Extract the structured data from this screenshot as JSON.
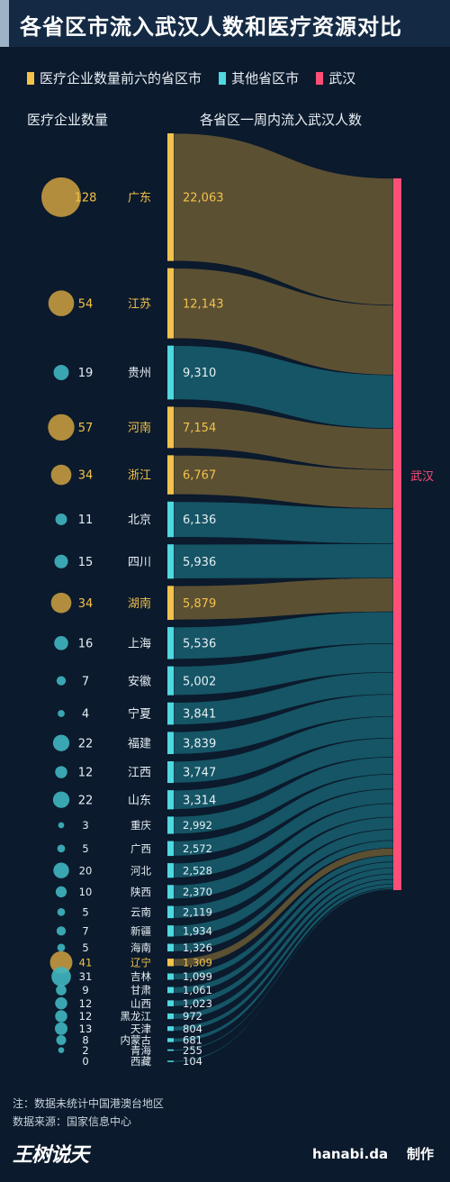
{
  "title": "各省区市流入武汉人数和医疗资源对比",
  "legend": [
    {
      "label": "医疗企业数量前六的省区市",
      "color": "#f2c24a"
    },
    {
      "label": "其他省区市",
      "color": "#4fd8e0"
    },
    {
      "label": "武汉",
      "color": "#ff4f78"
    }
  ],
  "left_header": "医疗企业数量",
  "right_header": "各省区一周内流入武汉人数",
  "target_label": "武汉",
  "footnote": "注：数据未统计中国港澳台地区",
  "source": "数据来源：国家信息中心",
  "brand_left": "王树说天",
  "brand_right": "hanabi.da",
  "brand_right_suffix": "制作",
  "chart_data": {
    "type": "sankey",
    "target": "武汉",
    "categories": [
      "广东",
      "江苏",
      "贵州",
      "河南",
      "浙江",
      "北京",
      "四川",
      "湖南",
      "上海",
      "安徽",
      "宁夏",
      "福建",
      "江西",
      "山东",
      "重庆",
      "广西",
      "河北",
      "陕西",
      "云南",
      "新疆",
      "海南",
      "辽宁",
      "吉林",
      "甘肃",
      "山西",
      "黑龙江",
      "天津",
      "内蒙古",
      "青海",
      "西藏"
    ],
    "flow_to_wuhan": [
      22063,
      12143,
      9310,
      7154,
      6767,
      6136,
      5936,
      5879,
      5536,
      5002,
      3841,
      3839,
      3747,
      3314,
      2992,
      2572,
      2528,
      2370,
      2119,
      1934,
      1326,
      1309,
      1099,
      1061,
      1023,
      972,
      804,
      681,
      255,
      104
    ],
    "flow_labels": [
      "22,063",
      "12,143",
      "9,310",
      "7,154",
      "6,767",
      "6,136",
      "5,936",
      "5,879",
      "5,536",
      "5,002",
      "3,841",
      "3,839",
      "3,747",
      "3,314",
      "2,992",
      "2,572",
      "2,528",
      "2,370",
      "2,119",
      "1,934",
      "1,326",
      "1,309",
      "1,099",
      "1,061",
      "1,023",
      "972",
      "804",
      "681",
      "255",
      "104"
    ],
    "medical_enterprises": [
      128,
      54,
      19,
      57,
      34,
      11,
      15,
      34,
      16,
      7,
      4,
      22,
      12,
      22,
      3,
      5,
      20,
      10,
      5,
      7,
      5,
      41,
      31,
      9,
      12,
      12,
      13,
      8,
      2,
      0
    ],
    "top6": [
      "广东",
      "江苏",
      "河南",
      "浙江",
      "湖南",
      "辽宁"
    ],
    "colors": {
      "top6": "#f2c24a",
      "other": "#4fd8e0",
      "target": "#ff4f78"
    }
  }
}
